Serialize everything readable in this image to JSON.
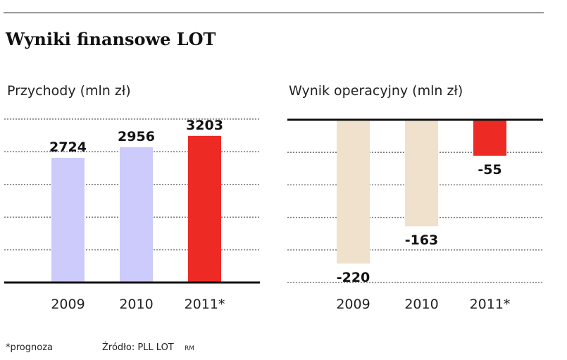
{
  "title": "Wyniki finansowe LOT",
  "footnote": "*prognoza",
  "source": "Źródło:  PLL LOT",
  "author": "RM",
  "colors": {
    "past_left": "#cccbfb",
    "past_right": "#efe1cb",
    "forecast": "#ee2a24",
    "axis": "#111111"
  },
  "chart_data": [
    {
      "type": "bar",
      "title": "Przychody (mln zł)",
      "categories": [
        "2009",
        "2010",
        "2011*"
      ],
      "values": [
        2724,
        2956,
        3203
      ],
      "ylim": [
        0,
        3570
      ],
      "grid": true,
      "xlabel": "",
      "ylabel": ""
    },
    {
      "type": "bar",
      "title": "Wynik operacyjny (mln zł)",
      "categories": [
        "2009",
        "2010",
        "2011*"
      ],
      "values": [
        -220,
        -163,
        -55
      ],
      "ylim": [
        -249,
        0
      ],
      "grid": true,
      "xlabel": "",
      "ylabel": ""
    }
  ]
}
